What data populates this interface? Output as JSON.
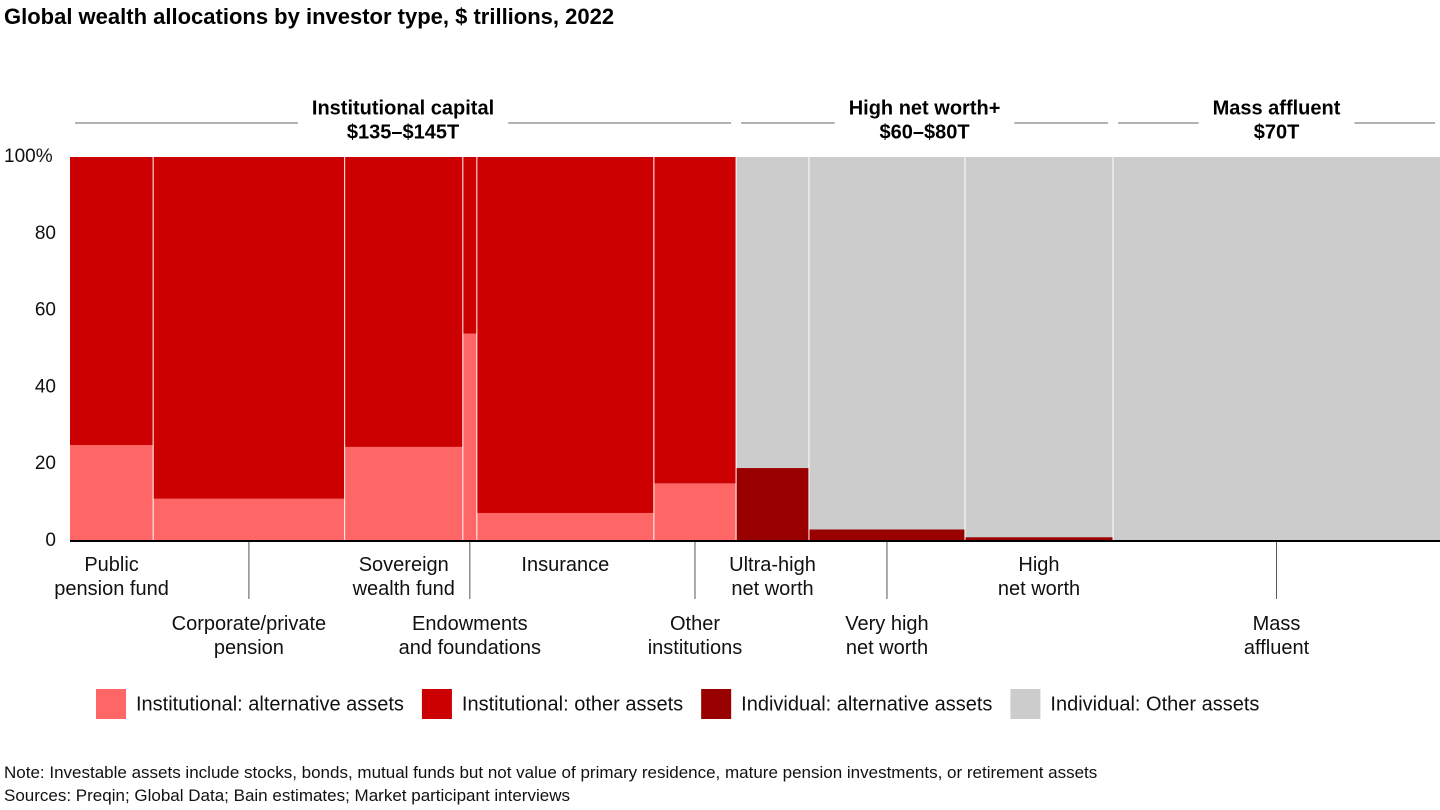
{
  "chart_data": {
    "type": "mekko",
    "title": "Global wealth allocations by investor type, $ trillions, 2022",
    "categories": [
      "Public\npension fund",
      "Corporate/private\npension",
      "Sovereign\nwealth fund",
      "Endowments\nand foundations",
      "Insurance",
      "Other\ninstitutions",
      "Ultra-high\nnet worth",
      "Very high\nnet worth",
      "High\nnet worth",
      "Mass\naffluent"
    ],
    "widths": [
      17.8,
      41,
      25.3,
      3,
      37.9,
      17.6,
      15.6,
      33.4,
      31.7,
      70
    ],
    "groups": [
      {
        "name": "Institutional capital",
        "total": "$135–$145T",
        "span": [
          0,
          5
        ]
      },
      {
        "name": "High net worth+",
        "total": "$60–$80T",
        "span": [
          6,
          8
        ]
      },
      {
        "name": "Mass affluent",
        "total": "$70T",
        "span": [
          9,
          9
        ]
      }
    ],
    "series": [
      {
        "name": "Institutional: alternative assets",
        "color": "#ff6666",
        "values": [
          25,
          11,
          24.5,
          54,
          7.3,
          15,
          null,
          null,
          null,
          null
        ]
      },
      {
        "name": "Institutional: other assets",
        "color": "#cc0000",
        "values": [
          75,
          89,
          75.5,
          46,
          92.7,
          85,
          null,
          null,
          null,
          null
        ]
      },
      {
        "name": "Individual: alternative assets",
        "color": "#990000",
        "values": [
          null,
          null,
          null,
          null,
          null,
          null,
          19,
          3,
          1,
          0
        ]
      },
      {
        "name": "Individual: Other assets",
        "color": "#cccccc",
        "values": [
          null,
          null,
          null,
          null,
          null,
          null,
          81,
          97,
          99,
          100
        ]
      }
    ],
    "ylim": [
      0,
      100
    ],
    "yticks": [
      0,
      20,
      40,
      60,
      80,
      {
        "value": 100,
        "label": "100%"
      }
    ],
    "note": "Note: Investable assets include stocks, bonds, mutual funds but not value of primary residence, mature pension investments, or retirement assets",
    "source": "Sources: Preqin; Global Data; Bain estimates; Market participant interviews"
  }
}
